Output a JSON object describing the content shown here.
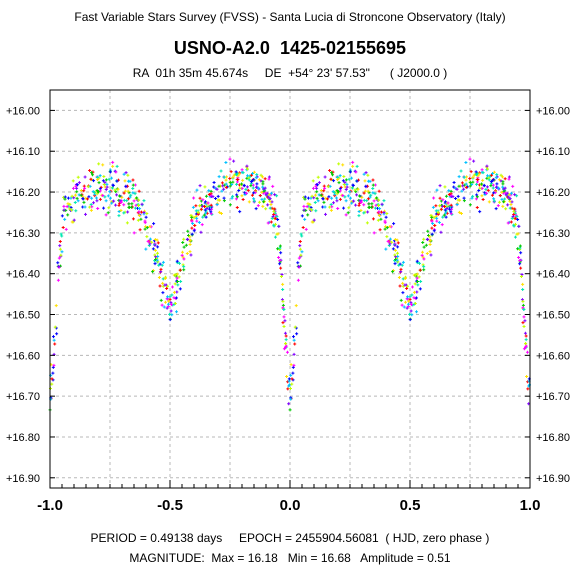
{
  "header": {
    "survey": "Fast Variable Stars Survey (FVSS) - Santa Lucia di Stroncone Observatory (Italy)",
    "title": "USNO-A2.0  1425-02155695",
    "coords": "RA  01h 35m 45.674s     DE  +54° 23' 57.53\"      ( J2000.0 )"
  },
  "footer": {
    "line1": "PERIOD = 0.49138 days     EPOCH = 2455904.56081  ( HJD, zero phase )",
    "line2": "MAGNITUDE:  Max = 16.18   Min = 16.68   Amplitude = 0.51"
  },
  "chart_data": {
    "type": "scatter",
    "title": "USNO-A2.0  1425-02155695",
    "xlabel": "",
    "ylabel": "",
    "xlim": [
      -1.0,
      1.0
    ],
    "ylim": [
      16.925,
      15.95
    ],
    "y_inverted": true,
    "grid": true,
    "x_ticks": [
      "-1.0",
      "-0.5",
      "0.0",
      "0.5",
      "1.0"
    ],
    "y_ticks": [
      "+16.00",
      "+16.10",
      "+16.20",
      "+16.30",
      "+16.40",
      "+16.50",
      "+16.60",
      "+16.70",
      "+16.80",
      "+16.90"
    ],
    "period_days": 0.49138,
    "epoch_hjd": 2455904.56081,
    "mag_max": 16.18,
    "mag_min": 16.68,
    "amplitude": 0.51,
    "secondary_min_mag": 16.48,
    "light_curve_profile": [
      [
        0.0,
        16.72
      ],
      [
        0.02,
        16.55
      ],
      [
        0.04,
        16.36
      ],
      [
        0.06,
        16.26
      ],
      [
        0.1,
        16.21
      ],
      [
        0.2,
        16.18
      ],
      [
        0.3,
        16.2
      ],
      [
        0.36,
        16.23
      ],
      [
        0.4,
        16.27
      ],
      [
        0.44,
        16.35
      ],
      [
        0.48,
        16.44
      ],
      [
        0.5,
        16.48
      ],
      [
        0.52,
        16.44
      ],
      [
        0.56,
        16.35
      ],
      [
        0.6,
        16.27
      ],
      [
        0.64,
        16.23
      ],
      [
        0.7,
        16.2
      ],
      [
        0.8,
        16.18
      ],
      [
        0.9,
        16.21
      ],
      [
        0.94,
        16.26
      ],
      [
        0.96,
        16.36
      ],
      [
        0.98,
        16.55
      ],
      [
        1.0,
        16.72
      ]
    ],
    "series_colors": [
      "#ff0000",
      "#ff00ff",
      "#0000ff",
      "#00c0ff",
      "#00c800",
      "#c0ff00",
      "#ffe000",
      "#8000ff",
      "#00e8b0"
    ]
  }
}
